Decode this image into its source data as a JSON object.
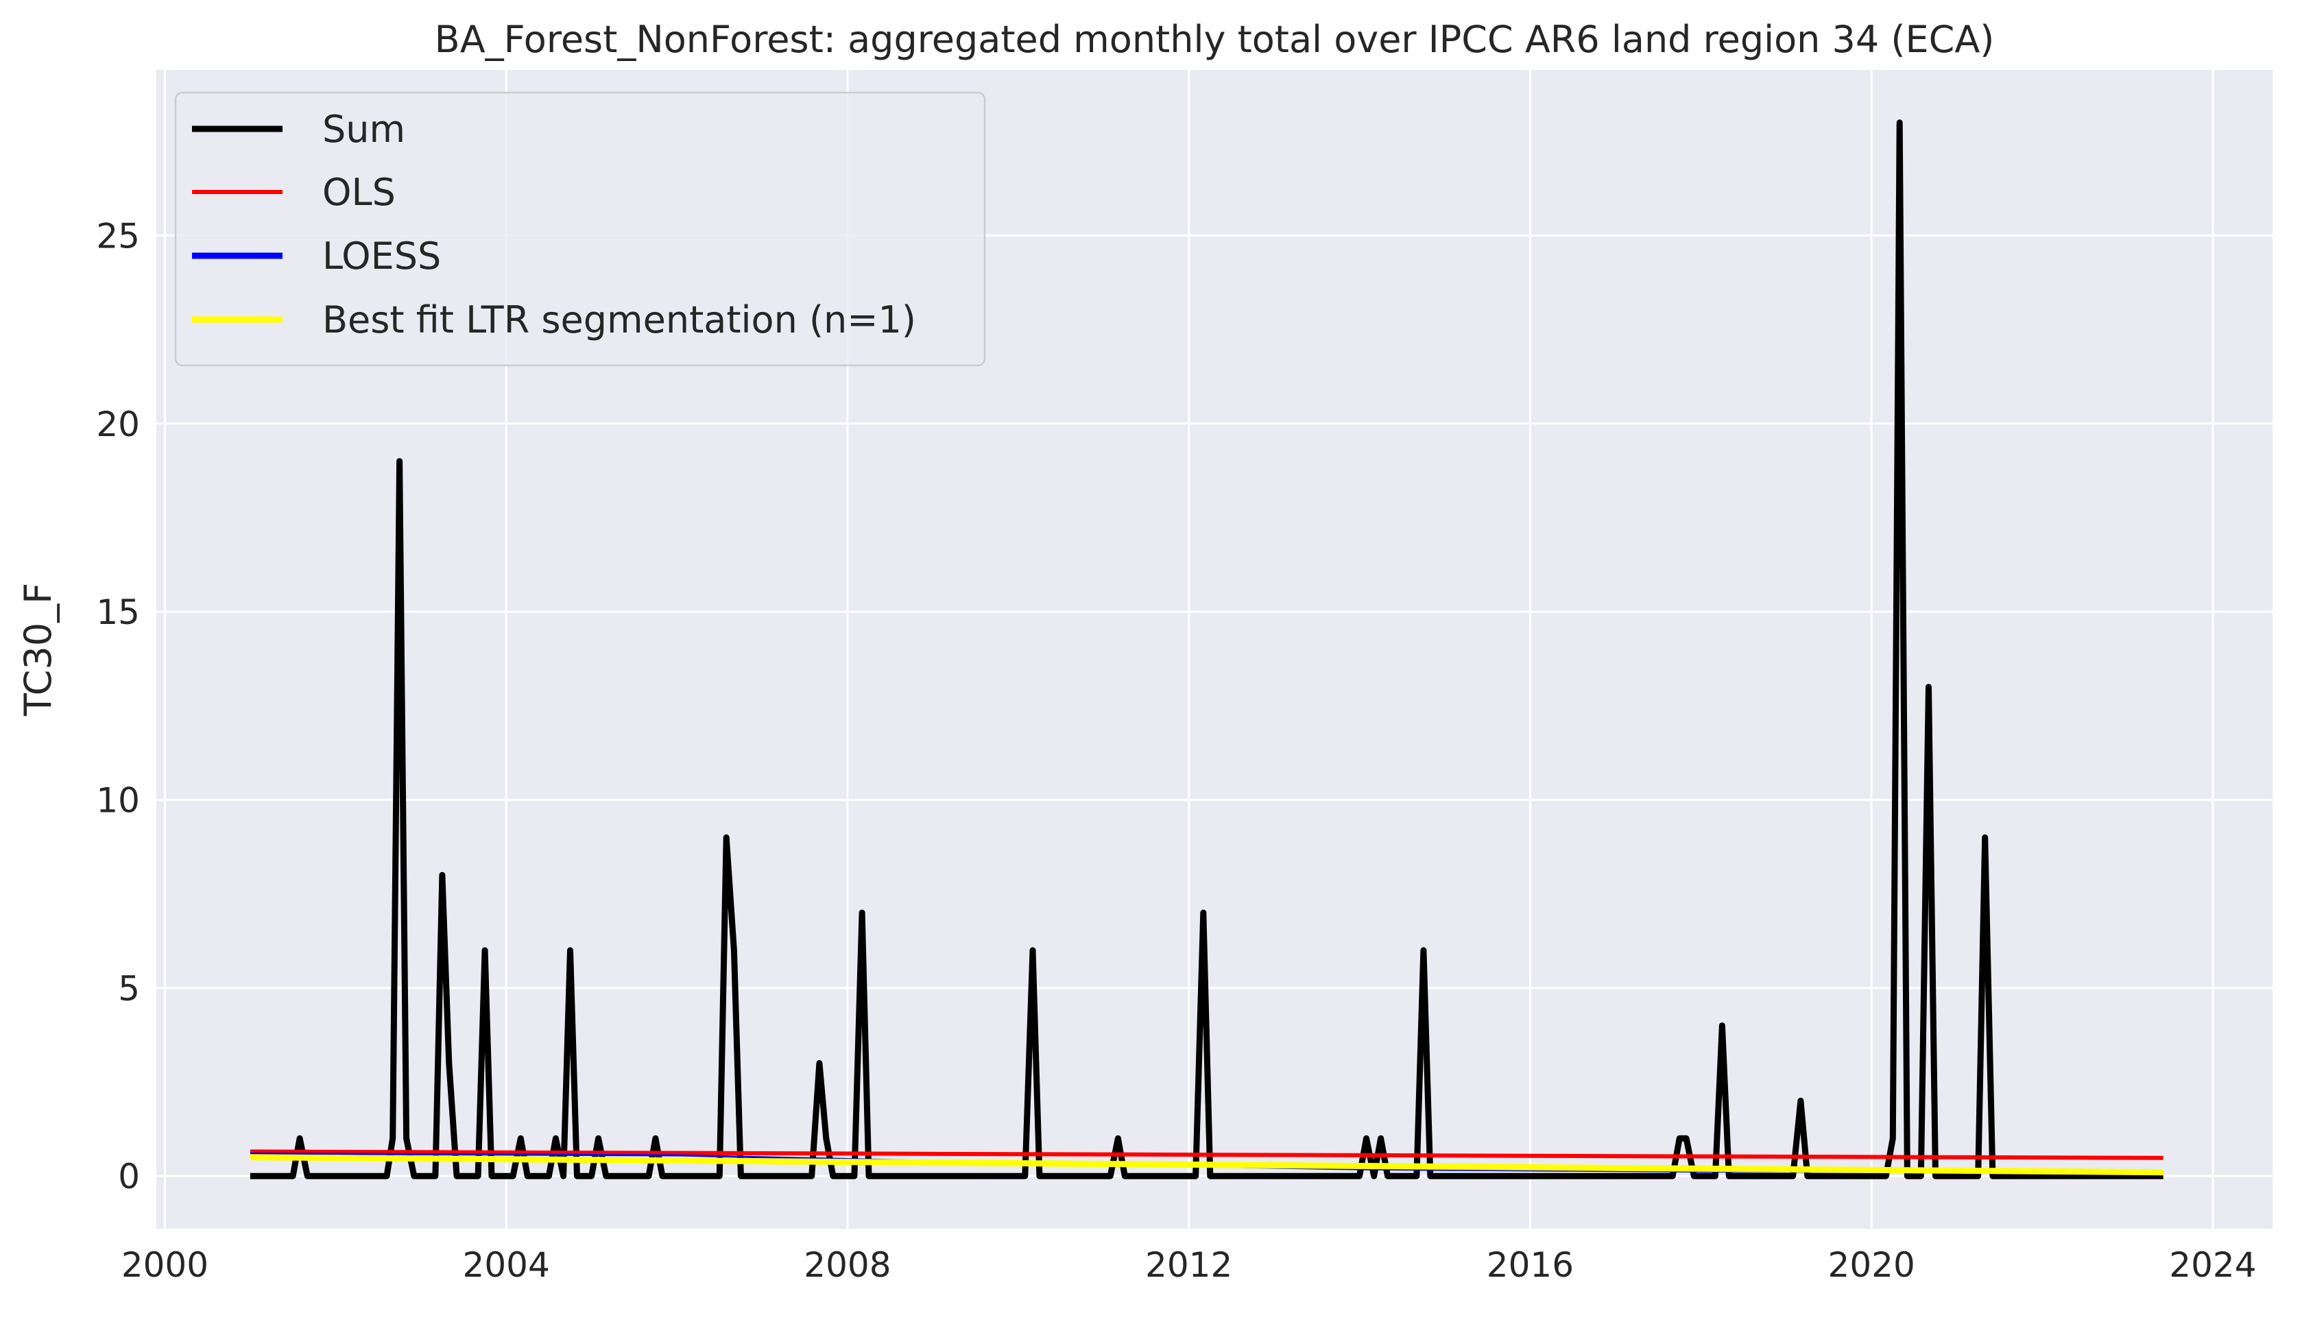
{
  "chart_data": {
    "type": "line",
    "title": "BA_Forest_NonForest: aggregated monthly total over IPCC AR6 land region 34 (ECA)",
    "xlabel": "",
    "ylabel": "TC30_F",
    "xlim": [
      1999.9,
      2024.7
    ],
    "ylim": [
      -1.4,
      29.4
    ],
    "xticks": [
      2000,
      2004,
      2008,
      2012,
      2016,
      2020,
      2024
    ],
    "xtick_labels": [
      "2000",
      "2004",
      "2008",
      "2012",
      "2016",
      "2020",
      "2024"
    ],
    "yticks": [
      0,
      5,
      10,
      15,
      20,
      25
    ],
    "ytick_labels": [
      "0",
      "5",
      "10",
      "15",
      "20",
      "25"
    ],
    "grid": true,
    "legend_position": "top-left",
    "background": "#eaeaf2",
    "series": [
      {
        "name": "Sum",
        "color": "#000000",
        "points": [
          [
            2001.0,
            0
          ],
          [
            2001.5,
            0
          ],
          [
            2001.58,
            1
          ],
          [
            2001.67,
            0
          ],
          [
            2002.6,
            0
          ],
          [
            2002.67,
            1
          ],
          [
            2002.75,
            19
          ],
          [
            2002.83,
            1
          ],
          [
            2002.92,
            0
          ],
          [
            2003.17,
            0
          ],
          [
            2003.25,
            8
          ],
          [
            2003.33,
            3
          ],
          [
            2003.42,
            0
          ],
          [
            2003.67,
            0
          ],
          [
            2003.75,
            6
          ],
          [
            2003.83,
            0
          ],
          [
            2004.08,
            0
          ],
          [
            2004.17,
            1
          ],
          [
            2004.25,
            0
          ],
          [
            2004.5,
            0
          ],
          [
            2004.58,
            1
          ],
          [
            2004.67,
            0
          ],
          [
            2004.75,
            6
          ],
          [
            2004.83,
            0
          ],
          [
            2005.0,
            0
          ],
          [
            2005.08,
            1
          ],
          [
            2005.17,
            0
          ],
          [
            2005.67,
            0
          ],
          [
            2005.75,
            1
          ],
          [
            2005.83,
            0
          ],
          [
            2006.5,
            0
          ],
          [
            2006.58,
            9
          ],
          [
            2006.67,
            6
          ],
          [
            2006.75,
            0
          ],
          [
            2007.58,
            0
          ],
          [
            2007.67,
            3
          ],
          [
            2007.75,
            1
          ],
          [
            2007.83,
            0
          ],
          [
            2008.08,
            0
          ],
          [
            2008.17,
            7
          ],
          [
            2008.25,
            0
          ],
          [
            2010.08,
            0
          ],
          [
            2010.17,
            6
          ],
          [
            2010.25,
            0
          ],
          [
            2011.08,
            0
          ],
          [
            2011.17,
            1
          ],
          [
            2011.25,
            0
          ],
          [
            2012.08,
            0
          ],
          [
            2012.17,
            7
          ],
          [
            2012.25,
            0
          ],
          [
            2014.0,
            0
          ],
          [
            2014.08,
            1
          ],
          [
            2014.17,
            0
          ],
          [
            2014.25,
            1
          ],
          [
            2014.33,
            0
          ],
          [
            2014.67,
            0
          ],
          [
            2014.75,
            6
          ],
          [
            2014.83,
            0
          ],
          [
            2017.67,
            0
          ],
          [
            2017.75,
            1
          ],
          [
            2017.83,
            1
          ],
          [
            2017.92,
            0
          ],
          [
            2018.17,
            0
          ],
          [
            2018.25,
            4
          ],
          [
            2018.33,
            0
          ],
          [
            2019.08,
            0
          ],
          [
            2019.17,
            2
          ],
          [
            2019.25,
            0
          ],
          [
            2020.17,
            0
          ],
          [
            2020.25,
            1
          ],
          [
            2020.33,
            28
          ],
          [
            2020.42,
            0
          ],
          [
            2020.58,
            0
          ],
          [
            2020.67,
            13
          ],
          [
            2020.75,
            0
          ],
          [
            2021.25,
            0
          ],
          [
            2021.33,
            9
          ],
          [
            2021.42,
            0
          ],
          [
            2023.42,
            0
          ]
        ]
      },
      {
        "name": "OLS",
        "color": "#ff0000",
        "points": [
          [
            2001.0,
            0.65
          ],
          [
            2023.42,
            0.48
          ]
        ]
      },
      {
        "name": "LOESS",
        "color": "#0000ff",
        "points": [
          [
            2001.0,
            0.6
          ],
          [
            2006.0,
            0.55
          ],
          [
            2010.0,
            0.35
          ],
          [
            2014.0,
            0.18
          ],
          [
            2018.0,
            0.12
          ],
          [
            2023.42,
            0.1
          ]
        ]
      },
      {
        "name": "Best fit LTR segmentation (n=1)",
        "color": "#ffff00",
        "points": [
          [
            2001.0,
            0.5
          ],
          [
            2023.42,
            0.1
          ]
        ]
      }
    ]
  }
}
